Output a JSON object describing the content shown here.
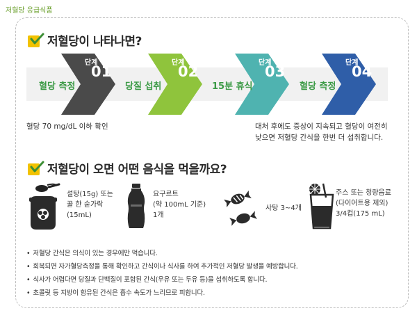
{
  "page_title": "저혈당 응급식품",
  "section1": {
    "title": "저혈당이 나타나면?"
  },
  "steps": [
    {
      "label": "단계",
      "num": "01",
      "action": "혈당 측정"
    },
    {
      "label": "단계",
      "num": "02",
      "action": "당질 섭취"
    },
    {
      "label": "단계",
      "num": "03",
      "action": "15분 휴식"
    },
    {
      "label": "단계",
      "num": "04",
      "action": "혈당 측정"
    }
  ],
  "step_colors": [
    "#4a4a4a",
    "#8fc43c",
    "#4fb3b0",
    "#2f5ea8"
  ],
  "note_left": "혈당 70 mg/dL 이하 확인",
  "note_right": [
    "대처 후에도 증상이 지속되고 혈당이 여전히",
    "낮으면 저혈당 간식을 한번 더 섭취합니다."
  ],
  "section2": {
    "title": "저혈당이 오면 어떤 음식을 먹을까요?"
  },
  "foods": [
    {
      "icon": "honey-sugar-icon",
      "lines": [
        "설탕(15g) 또는",
        "꿀 한 숟가락",
        "(15mL)"
      ]
    },
    {
      "icon": "yogurt-drink-icon",
      "lines": [
        "요구르트",
        "(약 100mL 기준)",
        "1개"
      ]
    },
    {
      "icon": "candy-icon",
      "lines": [
        "사탕 3~4개"
      ]
    },
    {
      "icon": "juice-glass-icon",
      "lines": [
        "주스 또는 청량음료",
        "(다이어트용 제외)",
        "3/4컵(175 mL)"
      ]
    }
  ],
  "tips": [
    "저혈당 간식은 의식이 있는 경우에만 먹습니다.",
    "회복되면 자가혈당측정을 통해 확인하고 간식이나 식사를 하여 추가적인 저혈당 발생을 예방합니다.",
    "식사가 어렵다면 당질과 단백질이 포함된 간식(우유 또는 두유 등)을 섭취하도록 합니다.",
    "초콜릿 등 지방이 함유된 간식은 흡수 속도가 느리므로 피합니다."
  ]
}
